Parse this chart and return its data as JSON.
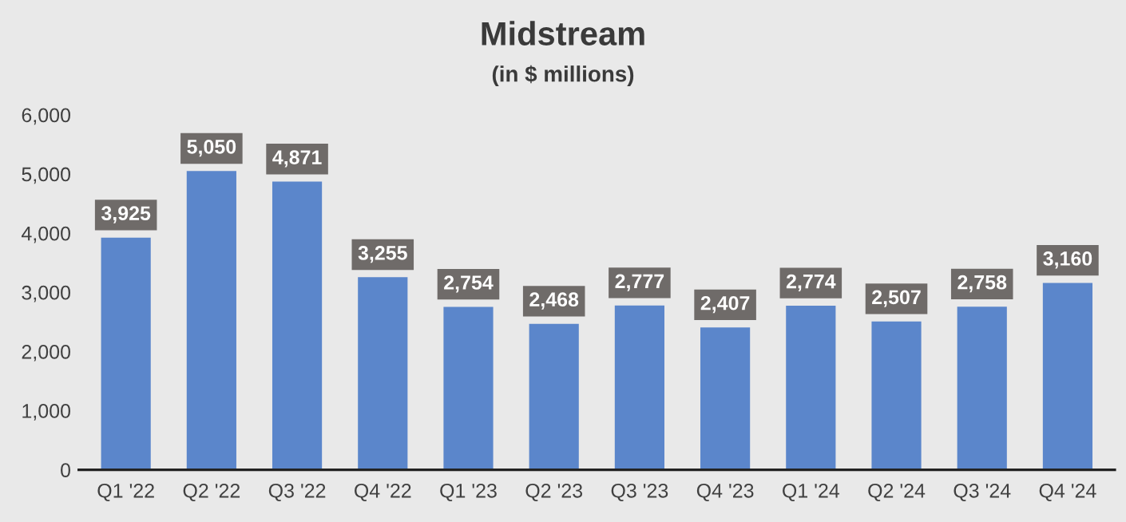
{
  "chart_data": {
    "type": "bar",
    "title": "Midstream",
    "subtitle": "(in $ millions)",
    "categories": [
      "Q1 '22",
      "Q2 '22",
      "Q3 '22",
      "Q4 '22",
      "Q1 '23",
      "Q2 '23",
      "Q3 '23",
      "Q4 '23",
      "Q1 '24",
      "Q2 '24",
      "Q3 '24",
      "Q4 '24"
    ],
    "values": [
      3925,
      5050,
      4871,
      3255,
      2754,
      2468,
      2777,
      2407,
      2774,
      2507,
      2758,
      3160
    ],
    "value_labels": [
      "3,925",
      "5,050",
      "4,871",
      "3,255",
      "2,754",
      "2,468",
      "2,777",
      "2,407",
      "2,774",
      "2,507",
      "2,758",
      "3,160"
    ],
    "color": "#5b86cb",
    "ylim": [
      0,
      6000
    ],
    "yticks": [
      {
        "value": 0,
        "label": "0"
      },
      {
        "value": 1000,
        "label": "1,000"
      },
      {
        "value": 2000,
        "label": "2,000"
      },
      {
        "value": 3000,
        "label": "3,000"
      },
      {
        "value": 4000,
        "label": "4,000"
      },
      {
        "value": 5000,
        "label": "5,000"
      },
      {
        "value": 6000,
        "label": "6,000"
      }
    ],
    "grid": false,
    "legend": false
  }
}
